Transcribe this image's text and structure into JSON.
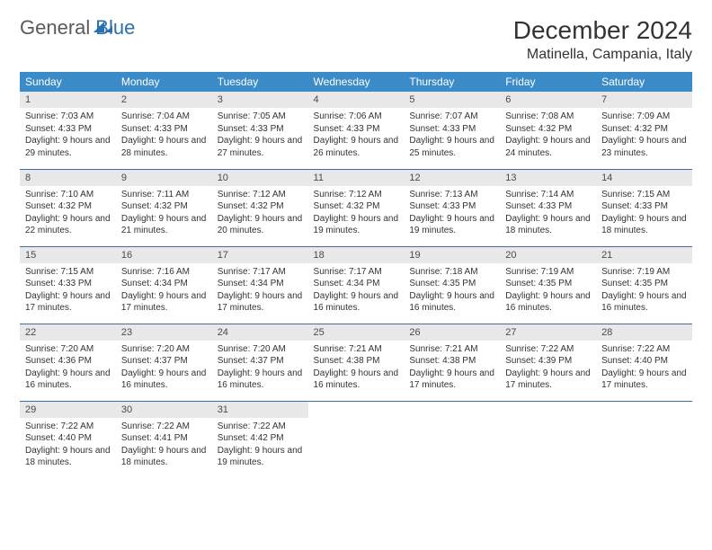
{
  "logo": {
    "general": "General",
    "blue": "Blue"
  },
  "title": "December 2024",
  "location": "Matinella, Campania, Italy",
  "colors": {
    "header_bg": "#3b8bc8",
    "header_text": "#ffffff",
    "daynum_bg": "#e8e8e8",
    "rule": "#3b6fa0",
    "logo_gray": "#5a5a5a",
    "logo_blue": "#2b6fb0"
  },
  "weekdays": [
    "Sunday",
    "Monday",
    "Tuesday",
    "Wednesday",
    "Thursday",
    "Friday",
    "Saturday"
  ],
  "weeks": [
    [
      {
        "n": "1",
        "sr": "7:03 AM",
        "ss": "4:33 PM",
        "dl": "9 hours and 29 minutes."
      },
      {
        "n": "2",
        "sr": "7:04 AM",
        "ss": "4:33 PM",
        "dl": "9 hours and 28 minutes."
      },
      {
        "n": "3",
        "sr": "7:05 AM",
        "ss": "4:33 PM",
        "dl": "9 hours and 27 minutes."
      },
      {
        "n": "4",
        "sr": "7:06 AM",
        "ss": "4:33 PM",
        "dl": "9 hours and 26 minutes."
      },
      {
        "n": "5",
        "sr": "7:07 AM",
        "ss": "4:33 PM",
        "dl": "9 hours and 25 minutes."
      },
      {
        "n": "6",
        "sr": "7:08 AM",
        "ss": "4:32 PM",
        "dl": "9 hours and 24 minutes."
      },
      {
        "n": "7",
        "sr": "7:09 AM",
        "ss": "4:32 PM",
        "dl": "9 hours and 23 minutes."
      }
    ],
    [
      {
        "n": "8",
        "sr": "7:10 AM",
        "ss": "4:32 PM",
        "dl": "9 hours and 22 minutes."
      },
      {
        "n": "9",
        "sr": "7:11 AM",
        "ss": "4:32 PM",
        "dl": "9 hours and 21 minutes."
      },
      {
        "n": "10",
        "sr": "7:12 AM",
        "ss": "4:32 PM",
        "dl": "9 hours and 20 minutes."
      },
      {
        "n": "11",
        "sr": "7:12 AM",
        "ss": "4:32 PM",
        "dl": "9 hours and 19 minutes."
      },
      {
        "n": "12",
        "sr": "7:13 AM",
        "ss": "4:33 PM",
        "dl": "9 hours and 19 minutes."
      },
      {
        "n": "13",
        "sr": "7:14 AM",
        "ss": "4:33 PM",
        "dl": "9 hours and 18 minutes."
      },
      {
        "n": "14",
        "sr": "7:15 AM",
        "ss": "4:33 PM",
        "dl": "9 hours and 18 minutes."
      }
    ],
    [
      {
        "n": "15",
        "sr": "7:15 AM",
        "ss": "4:33 PM",
        "dl": "9 hours and 17 minutes."
      },
      {
        "n": "16",
        "sr": "7:16 AM",
        "ss": "4:34 PM",
        "dl": "9 hours and 17 minutes."
      },
      {
        "n": "17",
        "sr": "7:17 AM",
        "ss": "4:34 PM",
        "dl": "9 hours and 17 minutes."
      },
      {
        "n": "18",
        "sr": "7:17 AM",
        "ss": "4:34 PM",
        "dl": "9 hours and 16 minutes."
      },
      {
        "n": "19",
        "sr": "7:18 AM",
        "ss": "4:35 PM",
        "dl": "9 hours and 16 minutes."
      },
      {
        "n": "20",
        "sr": "7:19 AM",
        "ss": "4:35 PM",
        "dl": "9 hours and 16 minutes."
      },
      {
        "n": "21",
        "sr": "7:19 AM",
        "ss": "4:35 PM",
        "dl": "9 hours and 16 minutes."
      }
    ],
    [
      {
        "n": "22",
        "sr": "7:20 AM",
        "ss": "4:36 PM",
        "dl": "9 hours and 16 minutes."
      },
      {
        "n": "23",
        "sr": "7:20 AM",
        "ss": "4:37 PM",
        "dl": "9 hours and 16 minutes."
      },
      {
        "n": "24",
        "sr": "7:20 AM",
        "ss": "4:37 PM",
        "dl": "9 hours and 16 minutes."
      },
      {
        "n": "25",
        "sr": "7:21 AM",
        "ss": "4:38 PM",
        "dl": "9 hours and 16 minutes."
      },
      {
        "n": "26",
        "sr": "7:21 AM",
        "ss": "4:38 PM",
        "dl": "9 hours and 17 minutes."
      },
      {
        "n": "27",
        "sr": "7:22 AM",
        "ss": "4:39 PM",
        "dl": "9 hours and 17 minutes."
      },
      {
        "n": "28",
        "sr": "7:22 AM",
        "ss": "4:40 PM",
        "dl": "9 hours and 17 minutes."
      }
    ],
    [
      {
        "n": "29",
        "sr": "7:22 AM",
        "ss": "4:40 PM",
        "dl": "9 hours and 18 minutes."
      },
      {
        "n": "30",
        "sr": "7:22 AM",
        "ss": "4:41 PM",
        "dl": "9 hours and 18 minutes."
      },
      {
        "n": "31",
        "sr": "7:22 AM",
        "ss": "4:42 PM",
        "dl": "9 hours and 19 minutes."
      },
      null,
      null,
      null,
      null
    ]
  ],
  "labels": {
    "sunrise": "Sunrise:",
    "sunset": "Sunset:",
    "daylight": "Daylight:"
  }
}
